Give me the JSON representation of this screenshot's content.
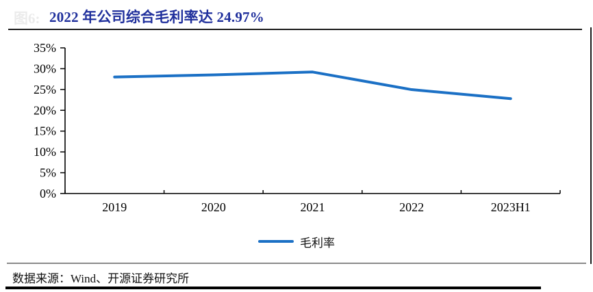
{
  "page": {
    "figure_label": "图6:",
    "title": "2022 年公司综合毛利率达 24.97%"
  },
  "chart_data": {
    "type": "line",
    "title": "2022 年公司综合毛利率达 24.97%",
    "categories": [
      "2019",
      "2020",
      "2021",
      "2022",
      "2023H1"
    ],
    "series": [
      {
        "name": "毛利率",
        "color": "#1b70c5",
        "values": [
          28.0,
          28.5,
          29.2,
          24.97,
          22.8
        ]
      }
    ],
    "xlabel": "",
    "ylabel": "",
    "ylim": [
      0,
      35
    ],
    "ytick_step": 5,
    "ytick_suffix": "%",
    "grid": false,
    "legend_position": "bottom",
    "legend_entries": [
      "毛利率"
    ]
  },
  "footer": {
    "source_text": "数据来源：Wind、开源证券研究所"
  },
  "colors": {
    "title_text": "#1f2f9c",
    "series_line": "#1b70c5",
    "axis": "#000000",
    "figure_label": "#ebebeb"
  }
}
